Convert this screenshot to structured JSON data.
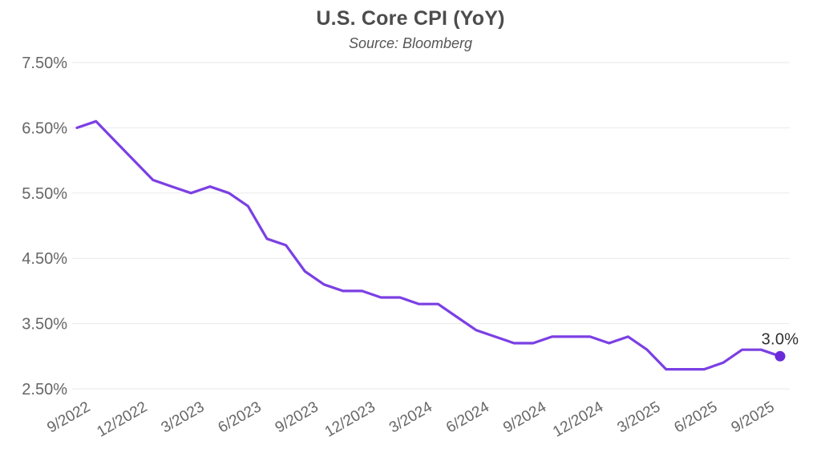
{
  "header": {
    "title": "U.S. Core CPI (YoY)",
    "subtitle": "Source: Bloomberg"
  },
  "chart_data": {
    "type": "line",
    "title": "U.S. Core CPI (YoY)",
    "subtitle": "Source: Bloomberg",
    "series_name": "U.S. Core CPI YoY (%)",
    "x": [
      "8/2022",
      "9/2022",
      "10/2022",
      "11/2022",
      "12/2022",
      "1/2023",
      "2/2023",
      "3/2023",
      "4/2023",
      "5/2023",
      "6/2023",
      "7/2023",
      "8/2023",
      "9/2023",
      "10/2023",
      "11/2023",
      "12/2023",
      "1/2024",
      "2/2024",
      "3/2024",
      "4/2024",
      "5/2024",
      "6/2024",
      "7/2024",
      "8/2024",
      "9/2024",
      "10/2024",
      "11/2024",
      "12/2024",
      "1/2025",
      "2/2025",
      "3/2025",
      "4/2025",
      "5/2025",
      "6/2025",
      "7/2025",
      "8/2025",
      "9/2025"
    ],
    "values": [
      6.5,
      6.6,
      6.3,
      6.0,
      5.7,
      5.6,
      5.5,
      5.6,
      5.5,
      5.3,
      4.8,
      4.7,
      4.3,
      4.1,
      4.0,
      4.0,
      3.9,
      3.9,
      3.8,
      3.8,
      3.6,
      3.4,
      3.3,
      3.2,
      3.2,
      3.3,
      3.3,
      3.3,
      3.2,
      3.3,
      3.1,
      2.8,
      2.8,
      2.8,
      2.9,
      3.1,
      3.1,
      3.0
    ],
    "x_tick_labels": [
      "9/2022",
      "12/2022",
      "3/2023",
      "6/2023",
      "9/2023",
      "12/2023",
      "3/2024",
      "6/2024",
      "9/2024",
      "12/2024",
      "3/2025",
      "6/2025",
      "9/2025"
    ],
    "y_tick_labels": [
      "7.50%",
      "6.50%",
      "5.50%",
      "4.50%",
      "3.50%",
      "2.50%"
    ],
    "y_tick_values": [
      7.5,
      6.5,
      5.5,
      4.5,
      3.5,
      2.5
    ],
    "ylim": [
      2.5,
      7.5
    ],
    "grid": "horizontal",
    "legend": "none",
    "last_point_label": "3.0%",
    "line_color": "#7b3fe4",
    "marker_color": "#6c2bd9",
    "gridline_color": "#eaeaea",
    "tick_label_color": "#666666",
    "annotation_color": "#2f2f2f"
  }
}
